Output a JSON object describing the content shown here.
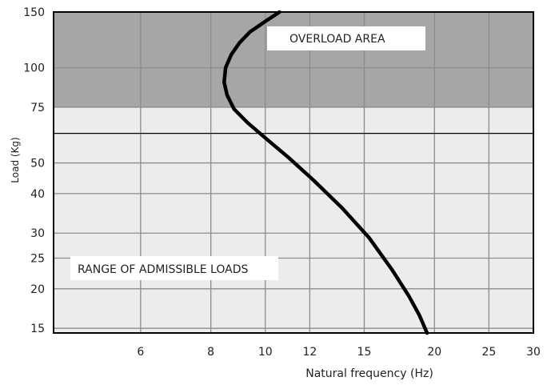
{
  "chart_data": {
    "type": "line",
    "title": "",
    "xlabel": "Natural frequency (Hz)",
    "ylabel": "Load (Kg)",
    "x_scale": "log",
    "y_scale": "log",
    "xlim": [
      4.2,
      30
    ],
    "ylim": [
      14.5,
      150
    ],
    "x_ticks": [
      6,
      8,
      10,
      12,
      15,
      20,
      25,
      30
    ],
    "y_ticks": [
      15,
      20,
      25,
      30,
      40,
      50,
      75,
      100,
      150
    ],
    "grid": true,
    "overload_threshold": 75,
    "reference_line": 62,
    "colors": {
      "overload": "#a6a6a6",
      "admissible": "#ececec",
      "grid": "#8c8c8c",
      "curve": "#000000"
    },
    "annotations": [
      {
        "id": "overload",
        "text": "OVERLOAD AREA"
      },
      {
        "id": "admissible",
        "text": "RANGE OF ADMISSIBLE LOADS"
      }
    ],
    "series": [
      {
        "x": [
          10.6,
          10.0,
          9.4,
          9.0,
          8.7,
          8.5,
          8.45,
          8.55,
          8.8,
          9.3,
          10.0,
          11.0,
          12.2,
          13.7,
          15.3,
          16.8,
          18.0,
          18.8,
          19.4
        ],
        "y": [
          150,
          140,
          130,
          120,
          110,
          100,
          90,
          82,
          74,
          67,
          60,
          52,
          44,
          36,
          29,
          23,
          19,
          16.5,
          14.5
        ]
      }
    ]
  }
}
